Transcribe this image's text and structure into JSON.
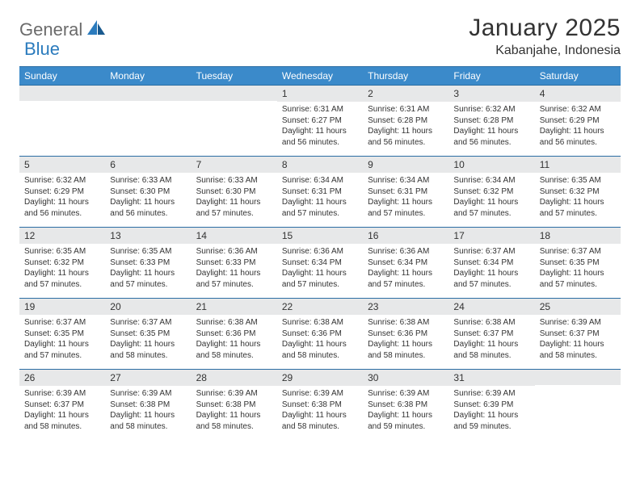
{
  "logo": {
    "part1": "General",
    "part2": "Blue"
  },
  "title": "January 2025",
  "location": "Kabanjahe, Indonesia",
  "colors": {
    "header_bg": "#3b8aca",
    "header_text": "#ffffff",
    "row_border": "#2b6da3",
    "daynum_bg": "#e7e8e9",
    "text": "#333333",
    "logo_gray": "#6b6b6b",
    "logo_blue": "#2b7bbd",
    "background": "#ffffff"
  },
  "day_headers": [
    "Sunday",
    "Monday",
    "Tuesday",
    "Wednesday",
    "Thursday",
    "Friday",
    "Saturday"
  ],
  "weeks": [
    [
      null,
      null,
      null,
      {
        "n": "1",
        "sr": "6:31 AM",
        "ss": "6:27 PM",
        "dl": "11 hours and 56 minutes."
      },
      {
        "n": "2",
        "sr": "6:31 AM",
        "ss": "6:28 PM",
        "dl": "11 hours and 56 minutes."
      },
      {
        "n": "3",
        "sr": "6:32 AM",
        "ss": "6:28 PM",
        "dl": "11 hours and 56 minutes."
      },
      {
        "n": "4",
        "sr": "6:32 AM",
        "ss": "6:29 PM",
        "dl": "11 hours and 56 minutes."
      }
    ],
    [
      {
        "n": "5",
        "sr": "6:32 AM",
        "ss": "6:29 PM",
        "dl": "11 hours and 56 minutes."
      },
      {
        "n": "6",
        "sr": "6:33 AM",
        "ss": "6:30 PM",
        "dl": "11 hours and 56 minutes."
      },
      {
        "n": "7",
        "sr": "6:33 AM",
        "ss": "6:30 PM",
        "dl": "11 hours and 57 minutes."
      },
      {
        "n": "8",
        "sr": "6:34 AM",
        "ss": "6:31 PM",
        "dl": "11 hours and 57 minutes."
      },
      {
        "n": "9",
        "sr": "6:34 AM",
        "ss": "6:31 PM",
        "dl": "11 hours and 57 minutes."
      },
      {
        "n": "10",
        "sr": "6:34 AM",
        "ss": "6:32 PM",
        "dl": "11 hours and 57 minutes."
      },
      {
        "n": "11",
        "sr": "6:35 AM",
        "ss": "6:32 PM",
        "dl": "11 hours and 57 minutes."
      }
    ],
    [
      {
        "n": "12",
        "sr": "6:35 AM",
        "ss": "6:32 PM",
        "dl": "11 hours and 57 minutes."
      },
      {
        "n": "13",
        "sr": "6:35 AM",
        "ss": "6:33 PM",
        "dl": "11 hours and 57 minutes."
      },
      {
        "n": "14",
        "sr": "6:36 AM",
        "ss": "6:33 PM",
        "dl": "11 hours and 57 minutes."
      },
      {
        "n": "15",
        "sr": "6:36 AM",
        "ss": "6:34 PM",
        "dl": "11 hours and 57 minutes."
      },
      {
        "n": "16",
        "sr": "6:36 AM",
        "ss": "6:34 PM",
        "dl": "11 hours and 57 minutes."
      },
      {
        "n": "17",
        "sr": "6:37 AM",
        "ss": "6:34 PM",
        "dl": "11 hours and 57 minutes."
      },
      {
        "n": "18",
        "sr": "6:37 AM",
        "ss": "6:35 PM",
        "dl": "11 hours and 57 minutes."
      }
    ],
    [
      {
        "n": "19",
        "sr": "6:37 AM",
        "ss": "6:35 PM",
        "dl": "11 hours and 57 minutes."
      },
      {
        "n": "20",
        "sr": "6:37 AM",
        "ss": "6:35 PM",
        "dl": "11 hours and 58 minutes."
      },
      {
        "n": "21",
        "sr": "6:38 AM",
        "ss": "6:36 PM",
        "dl": "11 hours and 58 minutes."
      },
      {
        "n": "22",
        "sr": "6:38 AM",
        "ss": "6:36 PM",
        "dl": "11 hours and 58 minutes."
      },
      {
        "n": "23",
        "sr": "6:38 AM",
        "ss": "6:36 PM",
        "dl": "11 hours and 58 minutes."
      },
      {
        "n": "24",
        "sr": "6:38 AM",
        "ss": "6:37 PM",
        "dl": "11 hours and 58 minutes."
      },
      {
        "n": "25",
        "sr": "6:39 AM",
        "ss": "6:37 PM",
        "dl": "11 hours and 58 minutes."
      }
    ],
    [
      {
        "n": "26",
        "sr": "6:39 AM",
        "ss": "6:37 PM",
        "dl": "11 hours and 58 minutes."
      },
      {
        "n": "27",
        "sr": "6:39 AM",
        "ss": "6:38 PM",
        "dl": "11 hours and 58 minutes."
      },
      {
        "n": "28",
        "sr": "6:39 AM",
        "ss": "6:38 PM",
        "dl": "11 hours and 58 minutes."
      },
      {
        "n": "29",
        "sr": "6:39 AM",
        "ss": "6:38 PM",
        "dl": "11 hours and 58 minutes."
      },
      {
        "n": "30",
        "sr": "6:39 AM",
        "ss": "6:38 PM",
        "dl": "11 hours and 59 minutes."
      },
      {
        "n": "31",
        "sr": "6:39 AM",
        "ss": "6:39 PM",
        "dl": "11 hours and 59 minutes."
      },
      null
    ]
  ],
  "labels": {
    "sunrise": "Sunrise:",
    "sunset": "Sunset:",
    "daylight": "Daylight:"
  }
}
